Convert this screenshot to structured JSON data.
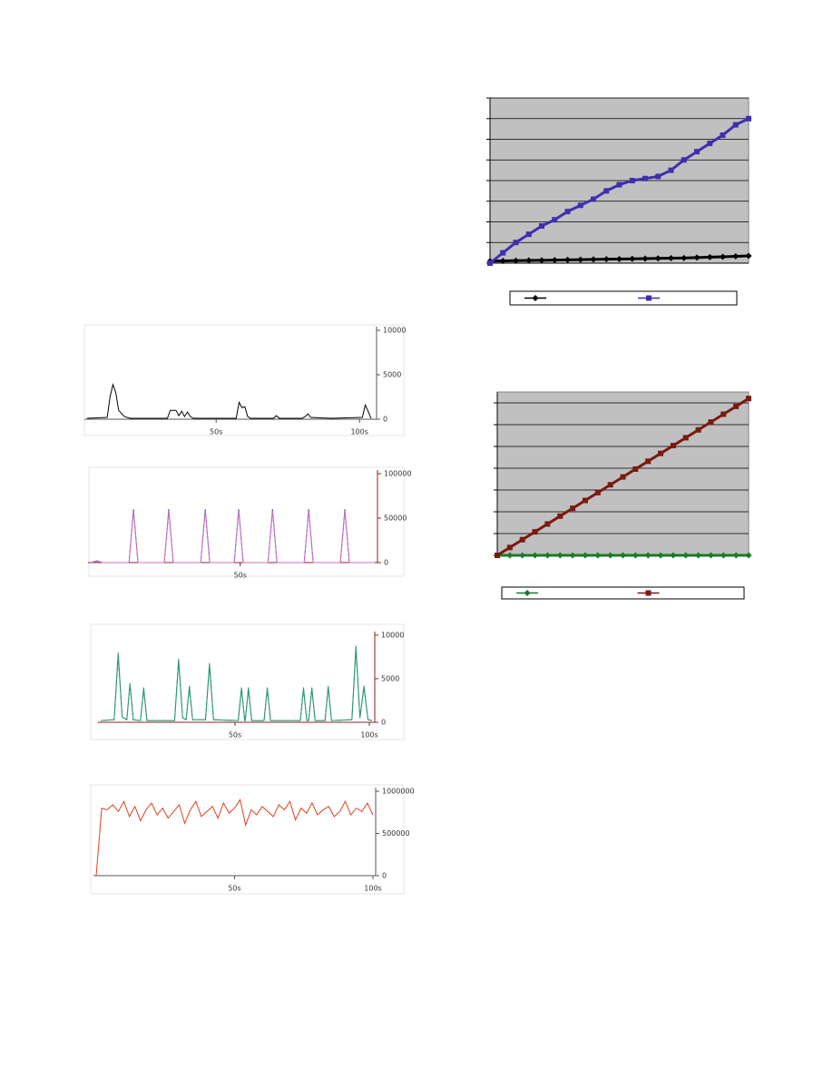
{
  "chart_data": [
    {
      "type": "line",
      "plot_background": "#c0c0c0",
      "grid": true,
      "legend": "bottom",
      "ylim": [
        0,
        8
      ],
      "yticks": [
        0,
        1,
        2,
        3,
        4,
        5,
        6,
        7,
        8
      ],
      "series": [
        {
          "color": "#000000",
          "marker": "diamond",
          "values": [
            0.1,
            0.11,
            0.12,
            0.13,
            0.14,
            0.15,
            0.16,
            0.17,
            0.18,
            0.19,
            0.2,
            0.21,
            0.22,
            0.23,
            0.24,
            0.25,
            0.27,
            0.29,
            0.31,
            0.33,
            0.35
          ]
        },
        {
          "color": "#3f2fb0",
          "marker": "square",
          "values": [
            0,
            0.5,
            1.0,
            1.4,
            1.8,
            2.1,
            2.5,
            2.8,
            3.1,
            3.5,
            3.8,
            4.0,
            4.1,
            4.2,
            4.5,
            5.0,
            5.4,
            5.8,
            6.2,
            6.7,
            7.0
          ]
        }
      ]
    },
    {
      "type": "line",
      "plot_background": "#c0c0c0",
      "grid": true,
      "legend": "bottom",
      "ylim": [
        0,
        7.5
      ],
      "yticks": [
        0,
        1,
        2,
        3,
        4,
        5,
        6,
        7
      ],
      "series": [
        {
          "color": "#1a7a2a",
          "marker": "diamond",
          "values": [
            0,
            0,
            0,
            0,
            0,
            0,
            0,
            0,
            0,
            0,
            0,
            0,
            0,
            0,
            0,
            0,
            0,
            0,
            0,
            0,
            0
          ]
        },
        {
          "color": "#7a1a10",
          "marker": "square",
          "values": [
            0,
            0.36,
            0.72,
            1.08,
            1.44,
            1.8,
            2.16,
            2.52,
            2.88,
            3.24,
            3.6,
            3.96,
            4.32,
            4.68,
            5.04,
            5.4,
            5.76,
            6.12,
            6.48,
            6.84,
            7.2
          ]
        }
      ]
    },
    {
      "type": "line",
      "y_axis_side": "right",
      "axis_color": "#555555",
      "xlim": [
        5,
        105
      ],
      "xticks": [
        {
          "value": 50,
          "label": "50s"
        },
        {
          "value": 100,
          "label": "100s"
        }
      ],
      "ylim": [
        0,
        10000
      ],
      "yticks": [
        0,
        5000,
        10000
      ],
      "series": [
        {
          "color": "#000000",
          "x": [
            5,
            12,
            13,
            14,
            15,
            16,
            18,
            20,
            33,
            34,
            36,
            37,
            38,
            39,
            40,
            41,
            42,
            57,
            58,
            59,
            60,
            61,
            62,
            70,
            71,
            72,
            80,
            81,
            82,
            83,
            90,
            101,
            102,
            103,
            104
          ],
          "values": [
            100,
            200,
            2500,
            3900,
            3000,
            1000,
            300,
            100,
            100,
            1000,
            1000,
            400,
            900,
            300,
            800,
            300,
            100,
            100,
            1900,
            1300,
            1400,
            300,
            100,
            100,
            400,
            100,
            100,
            300,
            600,
            200,
            100,
            200,
            1600,
            900,
            100
          ]
        }
      ]
    },
    {
      "type": "line",
      "y_axis_side": "right",
      "axis_color": "#8a2020",
      "xlim": [
        0,
        95
      ],
      "xticks": [
        {
          "value": 50,
          "label": "50s"
        }
      ],
      "ylim": [
        0,
        100000
      ],
      "yticks": [
        0,
        50000,
        100000
      ],
      "series": [
        {
          "color": "#3050c0",
          "x": [
            0,
            2,
            4,
            12.8,
            14.3,
            15.8,
            24.6,
            26.1,
            27.6,
            36.8,
            38.3,
            39.8,
            48,
            49.5,
            51,
            59.3,
            60.8,
            62.3,
            71.4,
            72.9,
            74.4,
            83.5,
            85,
            86.5,
            95
          ],
          "values": [
            0,
            2000,
            0,
            0,
            60000,
            0,
            0,
            60000,
            0,
            0,
            60000,
            0,
            0,
            60000,
            0,
            0,
            60000,
            0,
            0,
            60000,
            0,
            0,
            60000,
            0,
            0
          ]
        },
        {
          "color": "#d070c0",
          "x": [
            0,
            2,
            4,
            12.8,
            14.3,
            15.8,
            24.6,
            26.1,
            27.6,
            36.8,
            38.3,
            39.8,
            48,
            49.5,
            51,
            59.3,
            60.8,
            62.3,
            71.4,
            72.9,
            74.4,
            83.5,
            85,
            86.5,
            95
          ],
          "values": [
            0,
            1500,
            0,
            0,
            58000,
            0,
            0,
            58000,
            0,
            0,
            58000,
            0,
            0,
            58000,
            0,
            0,
            58000,
            0,
            0,
            58000,
            0,
            0,
            58000,
            0,
            0
          ]
        }
      ]
    },
    {
      "type": "line",
      "y_axis_side": "right",
      "axis_color": "#8a2020",
      "xlim": [
        0,
        101
      ],
      "xticks": [
        {
          "value": 50,
          "label": "50s"
        },
        {
          "value": 100,
          "label": "100s"
        }
      ],
      "ylim": [
        0,
        10000
      ],
      "yticks": [
        0,
        5000,
        10000
      ],
      "series": [
        {
          "color": "#3a6fb0",
          "x": [
            0,
            5,
            6.5,
            8,
            9.7,
            10.9,
            12.1,
            14.8,
            16,
            17.2,
            27.5,
            29,
            30.5,
            31.8,
            33,
            34.2,
            39,
            40.5,
            42,
            51.2,
            52.4,
            53.6,
            53.8,
            55,
            56.2,
            60.8,
            62,
            63.2,
            74.3,
            75.5,
            76.7,
            77.4,
            78.6,
            79.8,
            83.5,
            84.7,
            85.9,
            93.5,
            95,
            96.5,
            98,
            99.5,
            101
          ],
          "values": [
            200,
            300,
            7600,
            600,
            300,
            4300,
            300,
            200,
            3800,
            200,
            200,
            7000,
            500,
            300,
            4000,
            300,
            300,
            6500,
            300,
            200,
            3800,
            200,
            200,
            3800,
            200,
            200,
            3800,
            200,
            200,
            3800,
            200,
            200,
            3800,
            200,
            200,
            4000,
            200,
            300,
            8400,
            500,
            4000,
            300,
            200
          ]
        },
        {
          "color": "#2a9d6a",
          "x": [
            0,
            5,
            6.5,
            8,
            9.7,
            10.9,
            12.1,
            14.8,
            16,
            17.2,
            27.5,
            29,
            30.5,
            31.8,
            33,
            34.2,
            39,
            40.5,
            42,
            51.2,
            52.4,
            53.6,
            53.8,
            55,
            56.2,
            60.8,
            62,
            63.2,
            74.3,
            75.5,
            76.7,
            77.4,
            78.6,
            79.8,
            83.5,
            84.7,
            85.9,
            93.5,
            95,
            96.5,
            98,
            99.5,
            101
          ],
          "values": [
            200,
            300,
            8000,
            600,
            300,
            4500,
            300,
            200,
            4000,
            200,
            200,
            7300,
            500,
            300,
            4200,
            300,
            300,
            6800,
            300,
            200,
            4000,
            200,
            200,
            4000,
            200,
            200,
            4000,
            200,
            200,
            4000,
            200,
            200,
            4000,
            200,
            200,
            4200,
            200,
            300,
            8800,
            500,
            4200,
            300,
            200
          ]
        }
      ]
    },
    {
      "type": "line",
      "y_axis_side": "right",
      "axis_color": "#555555",
      "xlim": [
        0,
        100
      ],
      "xticks": [
        {
          "value": 50,
          "label": "50s"
        },
        {
          "value": 100,
          "label": "100s"
        }
      ],
      "ylim": [
        0,
        1000000
      ],
      "yticks": [
        0,
        500000,
        1000000
      ],
      "series": [
        {
          "color": "#e04020",
          "x": [
            0,
            2,
            4,
            6,
            8,
            10,
            12,
            14,
            16,
            18,
            20,
            22,
            24,
            26,
            28,
            30,
            32,
            34,
            36,
            38,
            40,
            42,
            44,
            46,
            48,
            50,
            52,
            54,
            56,
            58,
            60,
            62,
            64,
            66,
            68,
            70,
            72,
            74,
            76,
            78,
            80,
            82,
            84,
            86,
            88,
            90,
            92,
            94,
            96,
            98,
            100
          ],
          "values": [
            0,
            800000,
            780000,
            840000,
            760000,
            880000,
            700000,
            820000,
            650000,
            780000,
            860000,
            720000,
            800000,
            680000,
            760000,
            840000,
            620000,
            780000,
            880000,
            700000,
            760000,
            820000,
            680000,
            860000,
            740000,
            800000,
            900000,
            600000,
            780000,
            720000,
            820000,
            760000,
            700000,
            840000,
            780000,
            880000,
            660000,
            800000,
            740000,
            860000,
            720000,
            780000,
            820000,
            700000,
            760000,
            880000,
            720000,
            800000,
            760000,
            860000,
            720000
          ]
        }
      ]
    }
  ]
}
